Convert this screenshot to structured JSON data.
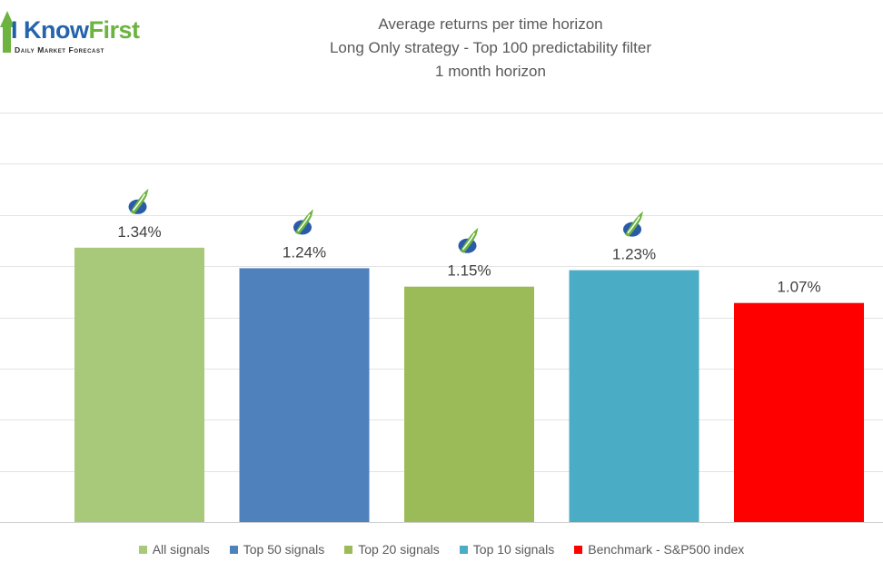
{
  "logo": {
    "name_i": "I ",
    "name_know": "Know",
    "name_first": "First",
    "tagline": "Daily Market Forecast"
  },
  "chart_data": {
    "type": "bar",
    "title": "Average returns per time horizon",
    "subtitle": "Long Only strategy - Top 100 predictability filter",
    "subtitle2": "1 month horizon",
    "categories": [
      "All signals",
      "Top 50 signals",
      "Top 20 signals",
      "Top 10 signals",
      "Benchmark - S&P500 index"
    ],
    "values": [
      1.34,
      1.24,
      1.15,
      1.23,
      1.07
    ],
    "value_labels": [
      "1.34%",
      "1.24%",
      "1.15%",
      "1.23%",
      "1.07%"
    ],
    "colors": [
      "#a9c97a",
      "#4f81bd",
      "#9bbb59",
      "#4bacc6",
      "#ff0000"
    ],
    "has_logo_icon": [
      true,
      true,
      true,
      true,
      false
    ],
    "ylim": [
      0,
      2.0
    ],
    "gridlines": [
      0,
      0.25,
      0.5,
      0.75,
      1.0,
      1.25,
      1.5,
      1.75,
      2.0
    ],
    "xlabel": "",
    "ylabel": "",
    "legend_position": "bottom"
  }
}
